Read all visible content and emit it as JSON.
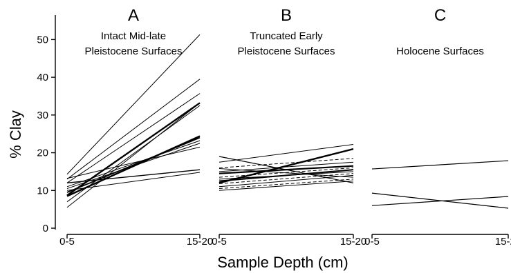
{
  "chart_data": {
    "type": "line",
    "ylabel": "% Clay",
    "xlabel": "Sample Depth (cm)",
    "ylim": [
      0,
      55
    ],
    "yticks": [
      0,
      10,
      20,
      30,
      40,
      50
    ],
    "x_categories": [
      "0-5",
      "15-20"
    ],
    "panels": [
      {
        "letter": "A",
        "title_lines": [
          "Intact Mid-late",
          "Pleistocene Surfaces"
        ],
        "series": [
          {
            "values": [
              14.3,
              51.3
            ],
            "width": 1.0,
            "dash": false
          },
          {
            "values": [
              13.0,
              39.5
            ],
            "width": 1.0,
            "dash": false
          },
          {
            "values": [
              12.0,
              35.7
            ],
            "width": 1.0,
            "dash": false
          },
          {
            "values": [
              5.5,
              33.2
            ],
            "width": 1.0,
            "dash": false
          },
          {
            "values": [
              8.7,
              33.2
            ],
            "width": 2.4,
            "dash": false
          },
          {
            "values": [
              7.0,
              32.5
            ],
            "width": 1.0,
            "dash": false
          },
          {
            "values": [
              8.5,
              24.4
            ],
            "width": 2.4,
            "dash": false
          },
          {
            "values": [
              9.5,
              24.0
            ],
            "width": 1.8,
            "dash": false
          },
          {
            "values": [
              11.0,
              23.2
            ],
            "width": 1.0,
            "dash": false
          },
          {
            "values": [
              10.5,
              22.5
            ],
            "width": 1.0,
            "dash": false
          },
          {
            "values": [
              13.2,
              21.5
            ],
            "width": 1.0,
            "dash": false
          },
          {
            "values": [
              12.0,
              15.5
            ],
            "width": 1.4,
            "dash": false
          },
          {
            "values": [
              10.0,
              14.8
            ],
            "width": 1.0,
            "dash": false
          }
        ]
      },
      {
        "letter": "B",
        "title_lines": [
          "Truncated Early",
          "Pleistocene Surfaces"
        ],
        "series": [
          {
            "values": [
              17.5,
              22.2
            ],
            "width": 1.0,
            "dash": false
          },
          {
            "values": [
              12.0,
              21.0
            ],
            "width": 2.4,
            "dash": false
          },
          {
            "values": [
              19.0,
              12.0
            ],
            "width": 1.2,
            "dash": false
          },
          {
            "values": [
              16.0,
              18.5
            ],
            "width": 1.0,
            "dash": true
          },
          {
            "values": [
              15.0,
              17.5
            ],
            "width": 1.0,
            "dash": false
          },
          {
            "values": [
              14.5,
              16.5
            ],
            "width": 2.2,
            "dash": false
          },
          {
            "values": [
              13.5,
              16.0
            ],
            "width": 1.0,
            "dash": true
          },
          {
            "values": [
              12.5,
              15.5
            ],
            "width": 2.0,
            "dash": false
          },
          {
            "values": [
              13.0,
              15.0
            ],
            "width": 1.0,
            "dash": false
          },
          {
            "values": [
              11.8,
              14.5
            ],
            "width": 1.0,
            "dash": true
          },
          {
            "values": [
              11.0,
              14.0
            ],
            "width": 1.0,
            "dash": false
          },
          {
            "values": [
              10.5,
              13.0
            ],
            "width": 1.0,
            "dash": true
          },
          {
            "values": [
              10.0,
              12.5
            ],
            "width": 1.0,
            "dash": false
          },
          {
            "values": [
              15.8,
              13.5
            ],
            "width": 1.0,
            "dash": false
          }
        ]
      },
      {
        "letter": "C",
        "title_lines": [
          "Holocene Surfaces"
        ],
        "series": [
          {
            "values": [
              15.7,
              17.9
            ],
            "width": 1.2,
            "dash": false
          },
          {
            "values": [
              9.3,
              5.3
            ],
            "width": 1.2,
            "dash": false
          },
          {
            "values": [
              6.0,
              8.4
            ],
            "width": 1.2,
            "dash": false
          }
        ]
      }
    ]
  }
}
